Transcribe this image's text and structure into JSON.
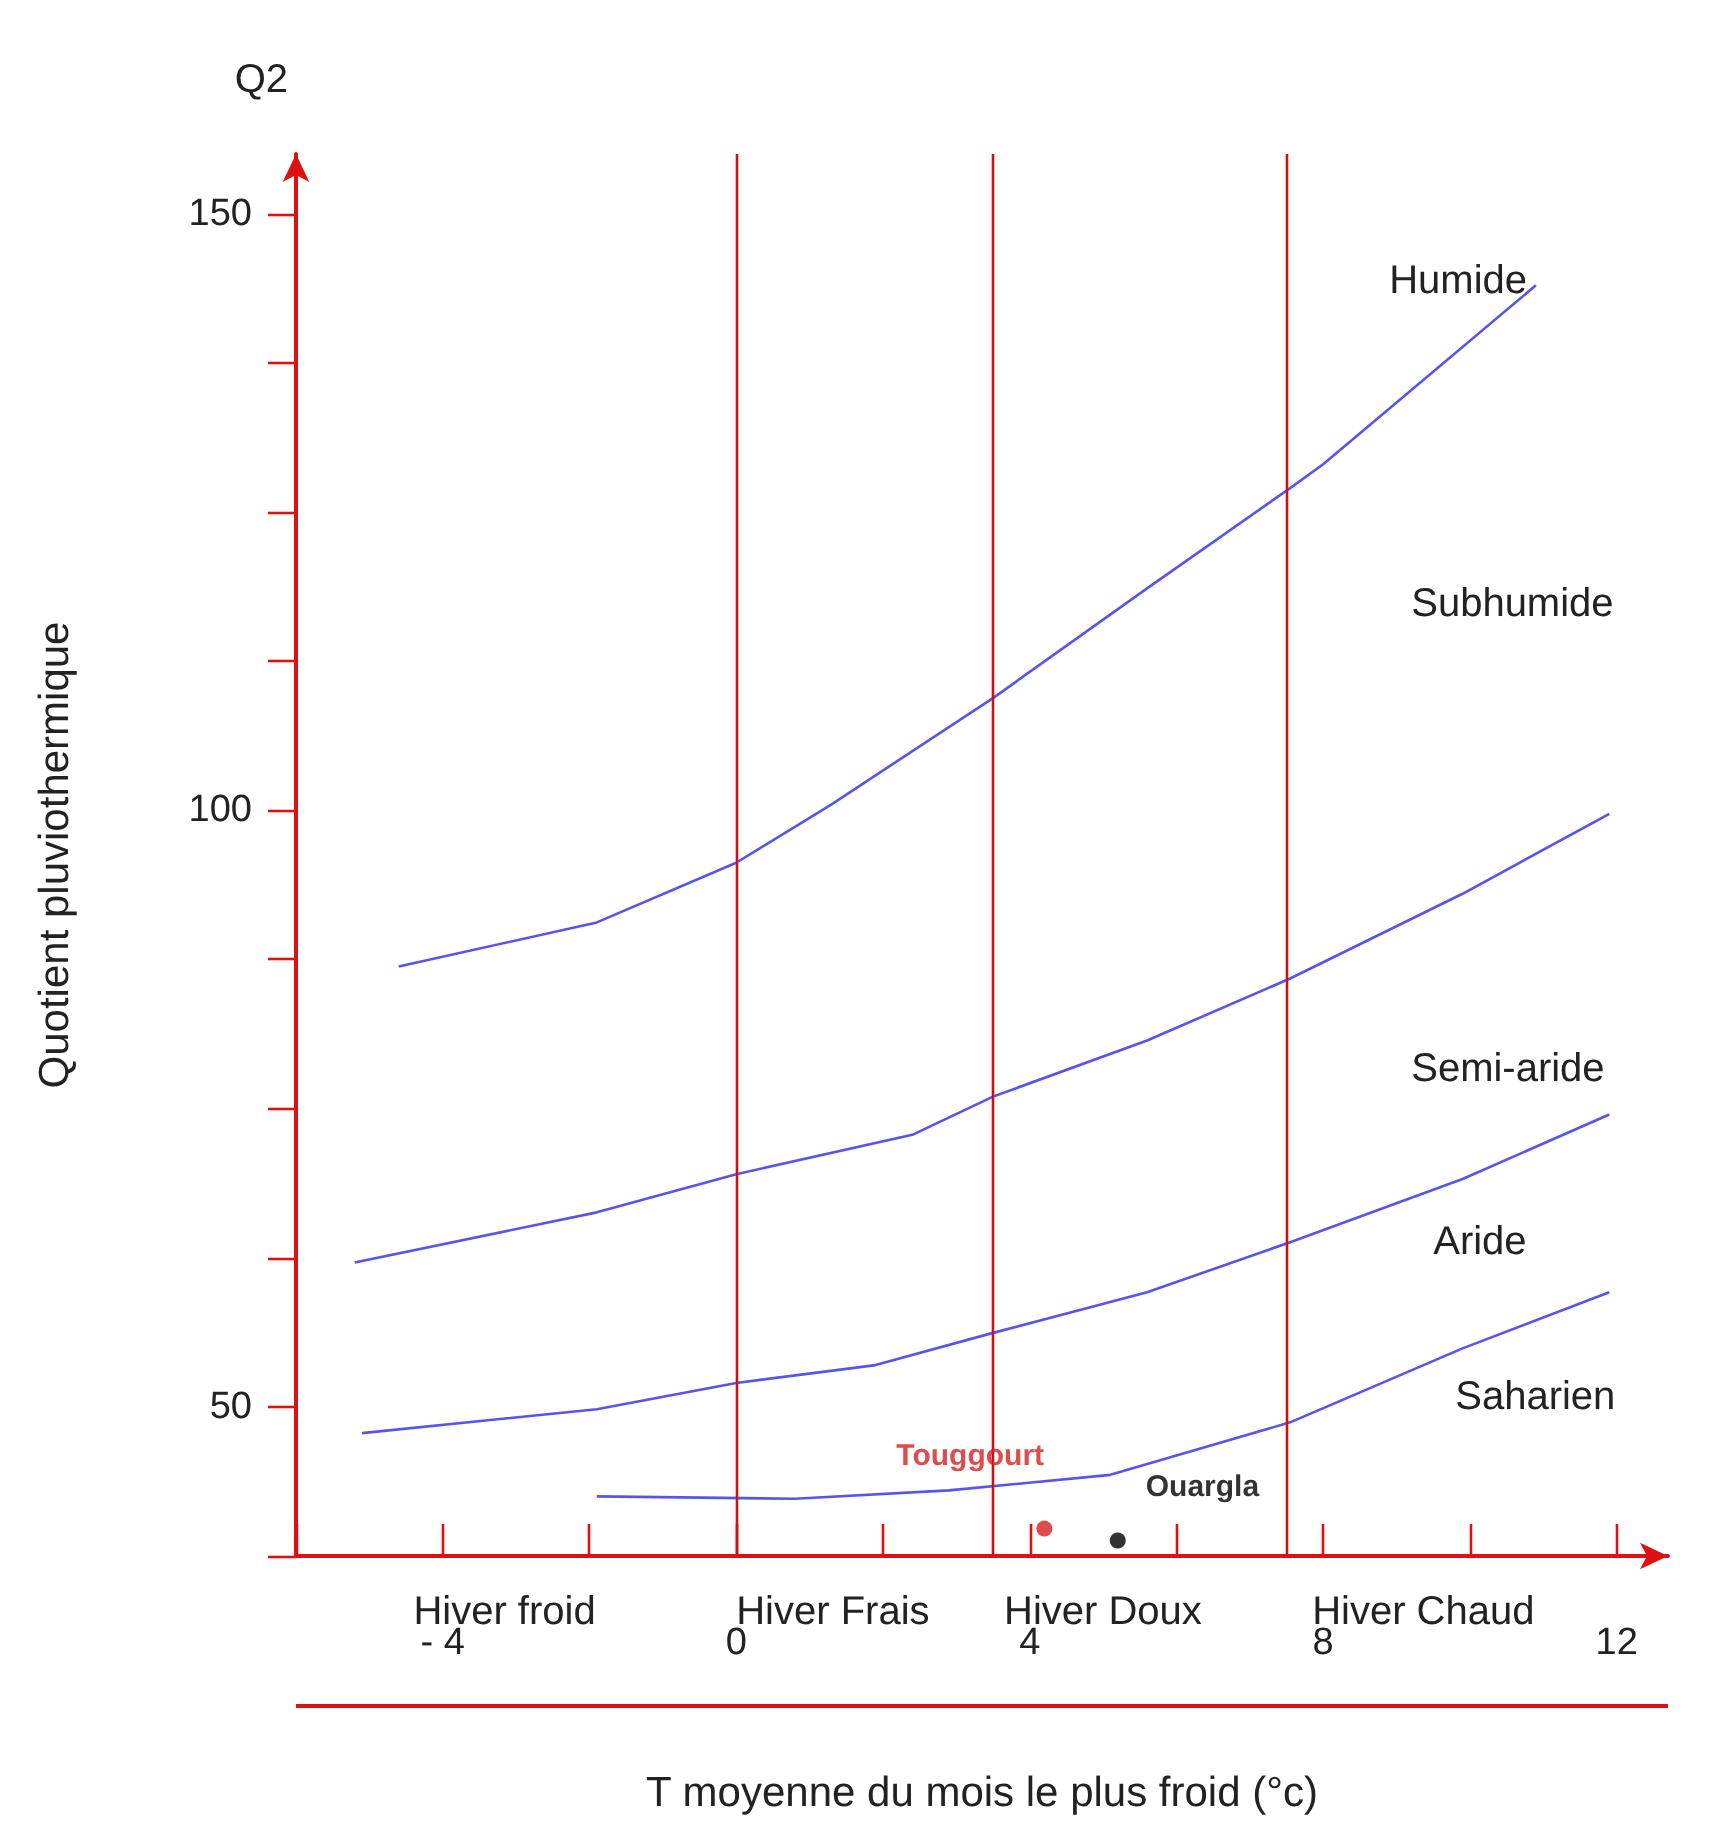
{
  "chart_data": {
    "type": "line",
    "xlabel": "T moyenne du mois le plus froid (°c)",
    "ylabel": "Quotient pluviothermique",
    "xlim": [
      -6,
      12.7
    ],
    "xticks": [
      {
        "value": -6,
        "label": null
      },
      {
        "value": -4,
        "label": "- 4"
      },
      {
        "value": -2,
        "label": null
      },
      0,
      {
        "value": 2,
        "label": null
      },
      4,
      {
        "value": 6,
        "label": null
      },
      8,
      {
        "value": 10,
        "label": null
      },
      12
    ],
    "ylim": [
      37.5,
      155
    ],
    "yticks": [
      {
        "value": 37.5,
        "label": null
      },
      50,
      {
        "value": 62.5,
        "label": null
      },
      {
        "value": 75,
        "label": null
      },
      {
        "value": 87.5,
        "label": null
      },
      100,
      {
        "value": 112.5,
        "label": null
      },
      {
        "value": 125,
        "label": null
      },
      {
        "value": 137.5,
        "label": null
      },
      150
    ],
    "grid": false,
    "legend": false,
    "marker": "none",
    "series": [
      {
        "color": "#5555ee",
        "x": [
          -4.6,
          -1.9,
          0,
          1.3,
          3.5,
          5.6,
          7.55,
          8,
          10.9
        ],
        "values": [
          86.9,
          90.6,
          95.6,
          100.5,
          109.4,
          118.6,
          127,
          129,
          144
        ]
      },
      {
        "color": "#5555ee",
        "x": [
          -5.2,
          -1.9,
          0,
          2.4,
          3.5,
          5.6,
          7.55,
          9.9,
          11.9
        ],
        "values": [
          62.1,
          66.3,
          69.5,
          72.8,
          76,
          80.7,
          85.9,
          93,
          99.7
        ]
      },
      {
        "color": "#5555ee",
        "x": [
          -5.1,
          -1.9,
          0,
          1.9,
          3.5,
          5.6,
          7.55,
          9.9,
          11.9
        ],
        "values": [
          47.8,
          49.8,
          52,
          53.5,
          56.2,
          59.6,
          63.8,
          69.1,
          74.5
        ]
      },
      {
        "color": "#5555ee",
        "x": [
          -1.9,
          0.8,
          2.9,
          5.1,
          7.55,
          9.9,
          11.9
        ],
        "values": [
          42.5,
          42.3,
          43,
          44.3,
          48.7,
          54.9,
          59.6
        ]
      },
      {
        "type": "scatter",
        "name": "Touggourt",
        "color": "#d42020",
        "x": [
          4.2
        ],
        "values": [
          39.8
        ],
        "marker": "circle"
      },
      {
        "type": "scatter",
        "name": "Ouargla",
        "color": "#000000",
        "x": [
          5.2
        ],
        "values": [
          38.8
        ],
        "marker": "circle"
      }
    ],
    "ref_lines": [
      {
        "axis": "x",
        "value": 0,
        "color": "#cc1111"
      },
      {
        "axis": "x",
        "value": 3.5,
        "color": "#cc1111"
      },
      {
        "axis": "x",
        "value": 7.5,
        "color": "#cc1111"
      }
    ],
    "annotations": [
      "Q2",
      "Humide",
      "Subhumide",
      "Semi-aride",
      "Aride",
      "Saharien",
      "Hiver froid",
      "Hiver Frais",
      "Hiver Doux",
      "Hiver Chaud"
    ]
  }
}
